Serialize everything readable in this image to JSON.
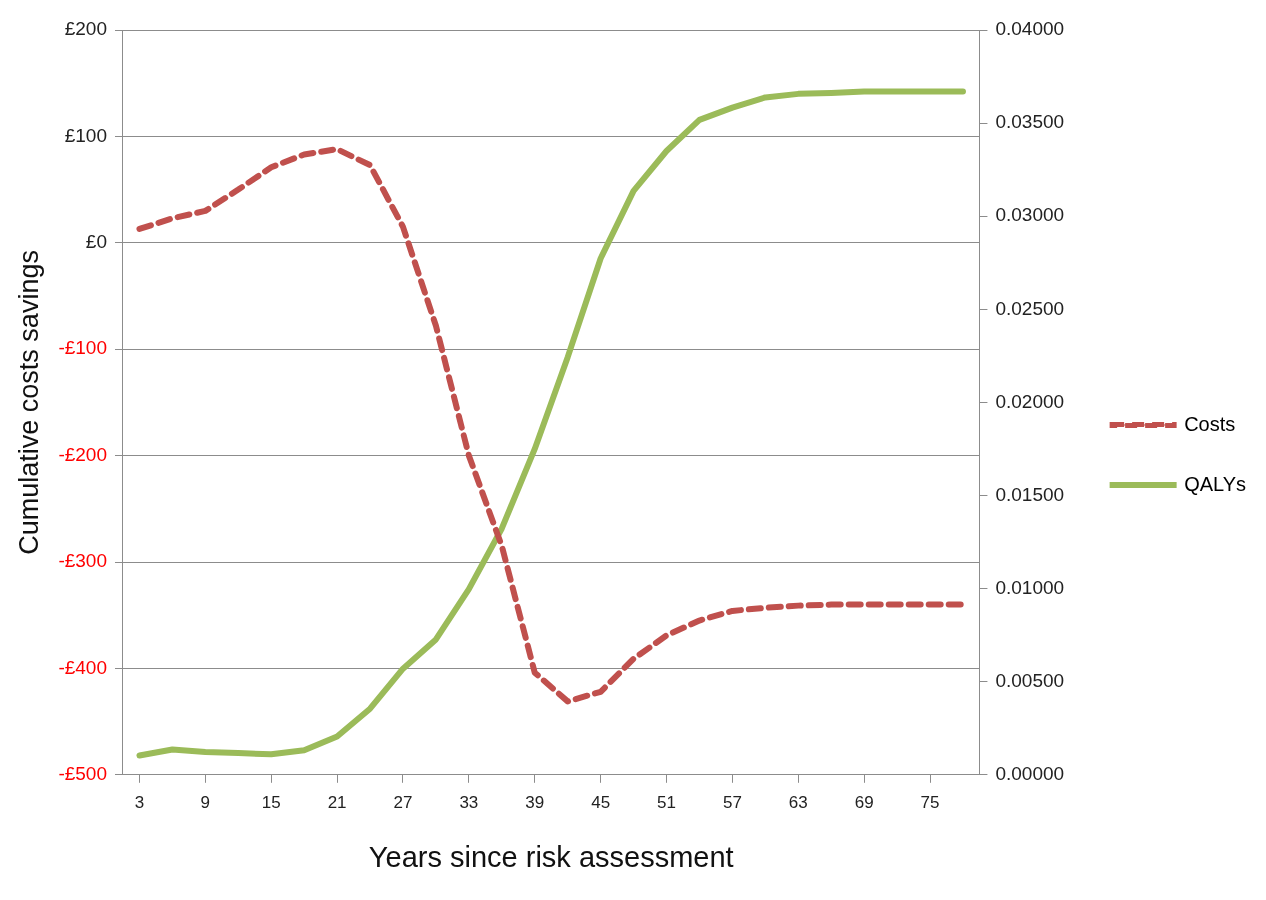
{
  "chart_data": {
    "type": "line",
    "xlabel": "Years since risk assessment",
    "ylabel": "Cumulative costs savings",
    "x": [
      3,
      6,
      9,
      12,
      15,
      18,
      21,
      24,
      27,
      30,
      33,
      36,
      39,
      42,
      45,
      48,
      51,
      54,
      57,
      60,
      63,
      66,
      69,
      72,
      75,
      78
    ],
    "xlim": [
      1.5,
      79.5
    ],
    "xticks": [
      3,
      9,
      15,
      21,
      27,
      33,
      39,
      45,
      51,
      57,
      63,
      69,
      75
    ],
    "series": [
      {
        "name": "Costs",
        "color": "#c0504d",
        "line_style": "dashed",
        "values": [
          13,
          23,
          30,
          50,
          71,
          83,
          88,
          73,
          15,
          -78,
          -200,
          -285,
          -404,
          -431,
          -422,
          -391,
          -369,
          -355,
          -346,
          -343,
          -341,
          -340,
          -340,
          -340,
          -340,
          -340
        ]
      },
      {
        "name": "QALYs",
        "color": "#9bbb59",
        "line_style": "solid",
        "axis": "y2",
        "values": [
          0.00104,
          0.00136,
          0.00123,
          0.00117,
          0.0011,
          0.00132,
          0.00206,
          0.00355,
          0.0057,
          0.00727,
          0.00997,
          0.01323,
          0.0175,
          0.02243,
          0.02773,
          0.03136,
          0.0335,
          0.03517,
          0.03583,
          0.03638,
          0.03657,
          0.03662,
          0.0367,
          0.0367,
          0.0367,
          0.0367
        ]
      }
    ],
    "ylim": [
      -500,
      200
    ],
    "yticks": [
      {
        "value": -500,
        "label": "-£500"
      },
      {
        "value": -400,
        "label": "-£400"
      },
      {
        "value": -300,
        "label": "-£300"
      },
      {
        "value": -200,
        "label": "-£200"
      },
      {
        "value": -100,
        "label": "-£100"
      },
      {
        "value": 0,
        "label": "£0"
      },
      {
        "value": 100,
        "label": "£100"
      },
      {
        "value": 200,
        "label": "£200"
      }
    ],
    "y2lim": [
      0,
      0.04
    ],
    "y2ticks": [
      {
        "value": 0,
        "label": "0.00000"
      },
      {
        "value": 0.005,
        "label": "0.00500"
      },
      {
        "value": 0.01,
        "label": "0.01000"
      },
      {
        "value": 0.015,
        "label": "0.01500"
      },
      {
        "value": 0.02,
        "label": "0.02000"
      },
      {
        "value": 0.025,
        "label": "0.02500"
      },
      {
        "value": 0.03,
        "label": "0.03000"
      },
      {
        "value": 0.035,
        "label": "0.03500"
      },
      {
        "value": 0.04,
        "label": "0.04000"
      }
    ],
    "grid": "y",
    "legend": "right",
    "marker": "none"
  }
}
